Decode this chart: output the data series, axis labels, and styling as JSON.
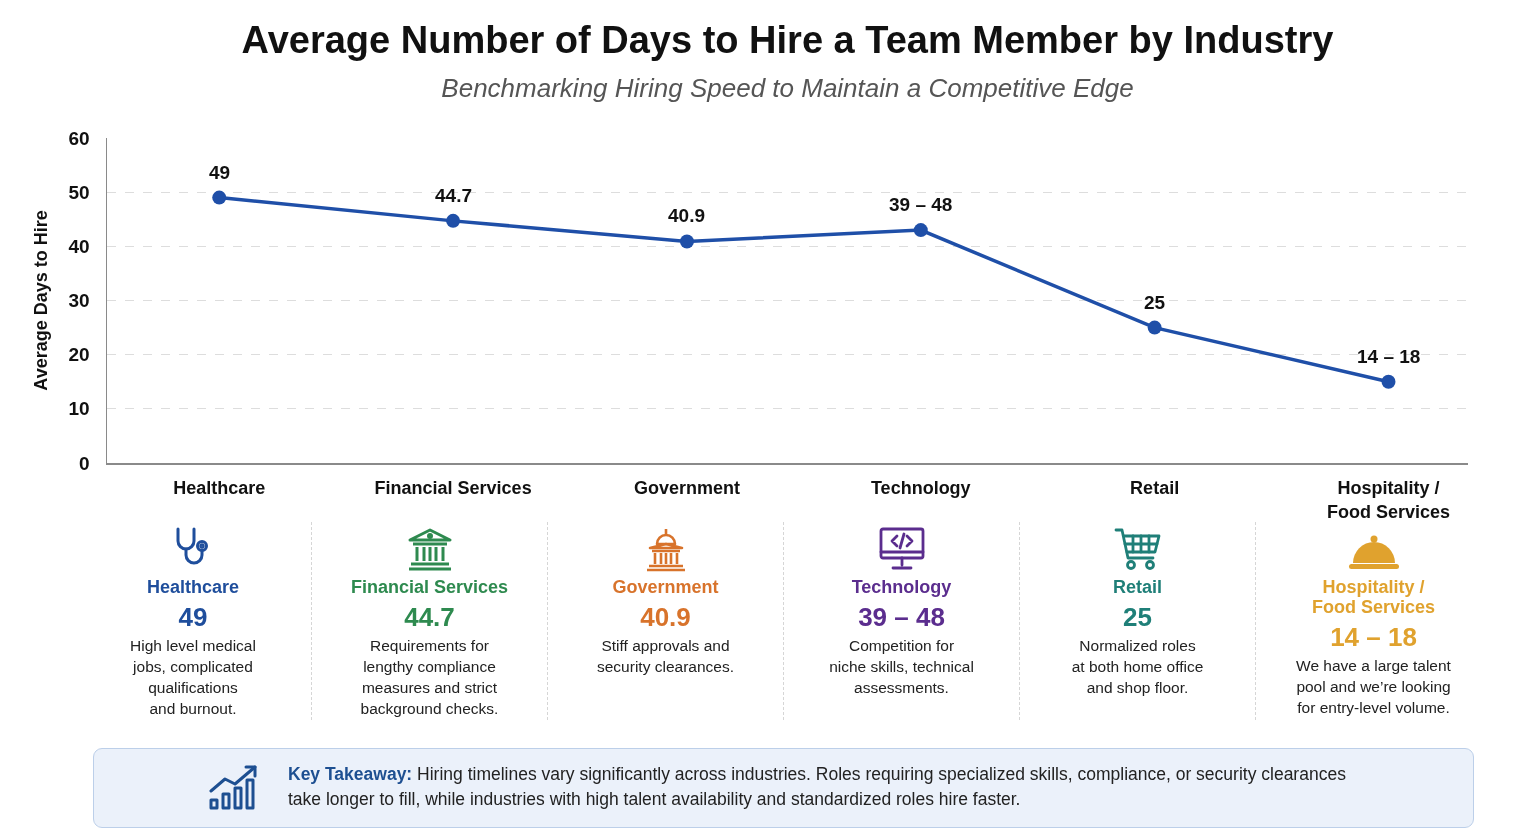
{
  "chart_data": [
    {
      "type": "line",
      "title": "Average Number of Days to Hire a Team Member by Industry",
      "subtitle": "Benchmarking Hiring Speed to Maintain a Competitive Edge",
      "ylabel": "Average Days to Hire",
      "categories": [
        "Healthcare",
        "Financial Services",
        "Government",
        "Technology",
        "Retail",
        "Hospitality / Food Services"
      ],
      "values": [
        49,
        44.7,
        40.9,
        43,
        25,
        15
      ],
      "value_labels": [
        "49",
        "44.7",
        "40.9",
        null,
        "25",
        null
      ],
      "annotations": [
        {
          "text": "39 – 48",
          "x": "Technology",
          "y": 43
        },
        {
          "text": "14 – 18",
          "x": "Hospitality / Food Services",
          "y": 15
        }
      ],
      "color": "#1f4fa8",
      "ylim": [
        0,
        60
      ],
      "yticks": [
        0,
        10,
        20,
        30,
        40,
        50,
        60
      ],
      "grid": "y",
      "marker": "circle",
      "line_style": "solid"
    },
    {
      "type": "other",
      "categories": [
        "Healthcare",
        "Financial Services",
        "Government",
        "Technology",
        "Retail",
        "Hospitality / Food Services"
      ],
      "colors": [
        "#1f4e9c",
        "#2e8a4f",
        "#d8732b",
        "#5b2d8e",
        "#1f7f78",
        "#e0a22e"
      ],
      "annotations": [
        "49",
        "High level medical jobs, complicated qualifications and burnout.",
        "44.7",
        "Requirements for lengthy compliance measures and strict background checks.",
        "40.9",
        "Stiff approvals and security clearances.",
        "39 – 48",
        "Competition for niche skills, technical assessments.",
        "25",
        "Normalized roles at both home office and shop floor.",
        "14 – 18",
        "We have a large talent pool and we’re looking for entry-level volume.",
        "Key Takeaway:",
        "Hiring timelines vary significantly across industries. Roles requiring specialized skills, compliance, or security clearances take longer to fill, while industries with high talent availability and standardized roles hire faster."
      ]
    }
  ]
}
